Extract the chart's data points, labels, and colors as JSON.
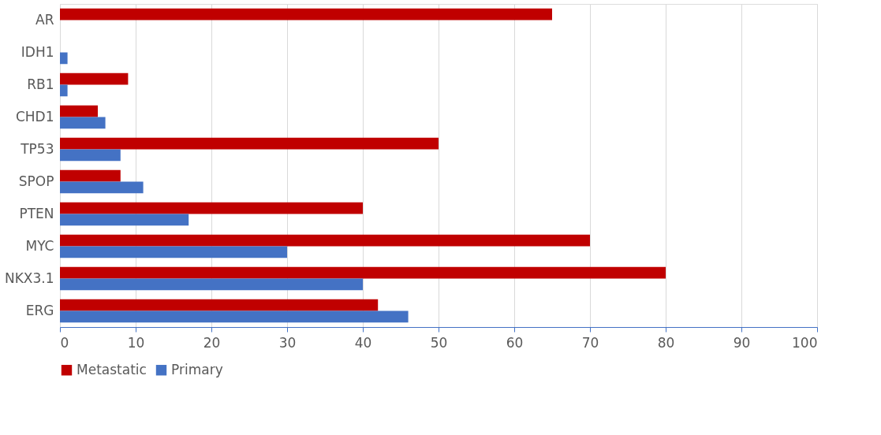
{
  "chart_data": {
    "type": "bar",
    "orientation": "horizontal",
    "categories": [
      "AR",
      "IDH1",
      "RB1",
      "CHD1",
      "TP53",
      "SPOP",
      "PTEN",
      "MYC",
      "NKX3.1",
      "ERG"
    ],
    "series": [
      {
        "name": "Metastatic",
        "color": "#c00000",
        "values": [
          65,
          null,
          9,
          5,
          50,
          8,
          40,
          70,
          80,
          42
        ]
      },
      {
        "name": "Primary",
        "color": "#4472c4",
        "values": [
          null,
          1,
          1,
          6,
          8,
          11,
          17,
          30,
          40,
          46
        ]
      }
    ],
    "xlim": [
      0,
      100
    ],
    "xticks": [
      0,
      10,
      20,
      30,
      40,
      50,
      60,
      70,
      80,
      90,
      100
    ],
    "grid": "x",
    "legend": "bottom"
  }
}
